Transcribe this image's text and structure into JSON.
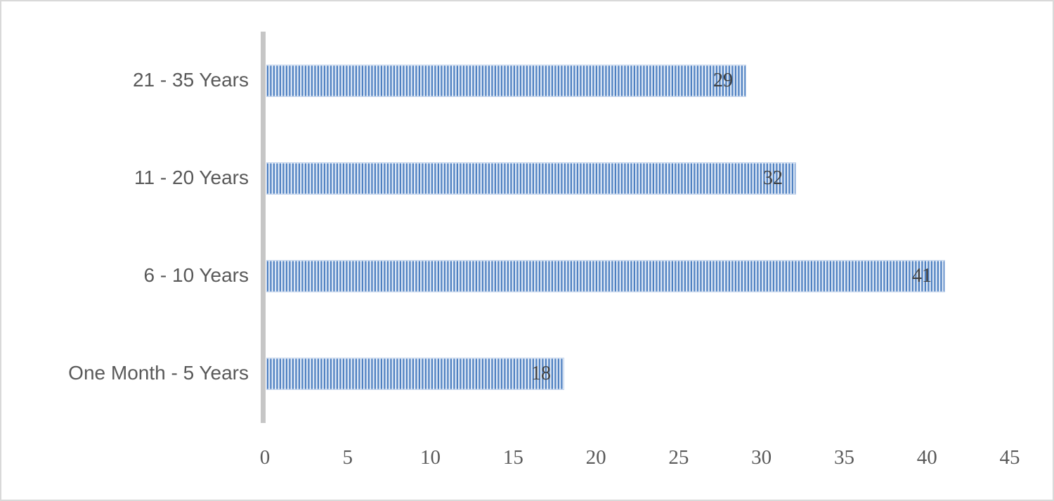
{
  "chart_data": {
    "type": "bar",
    "orientation": "horizontal",
    "title": "",
    "xlabel": "",
    "ylabel": "",
    "categories": [
      "21 - 35 Years",
      "11 - 20 Years",
      "6 - 10 Years",
      "One Month - 5 Years"
    ],
    "values": [
      29,
      32,
      41,
      18
    ],
    "data_labels": [
      "29",
      "32",
      "41",
      "18"
    ],
    "xlim": [
      0,
      45
    ],
    "x_ticks": [
      0,
      5,
      10,
      15,
      20,
      25,
      30,
      35,
      40,
      45
    ],
    "grid": false,
    "legend": "none",
    "bar_pattern": "vertical-line-fill",
    "colors": {
      "bar_stripe_dark": "#4e80c1",
      "bar_stripe_light": "#dde8f5",
      "bar_border": "#c2d3ec",
      "axis_line": "#c6c6c6",
      "category_label_text": "#595959",
      "tick_label_text": "#595959",
      "data_label_text": "#3f3f3f",
      "chart_border": "#d9d9d9",
      "background": "#ffffff"
    }
  }
}
